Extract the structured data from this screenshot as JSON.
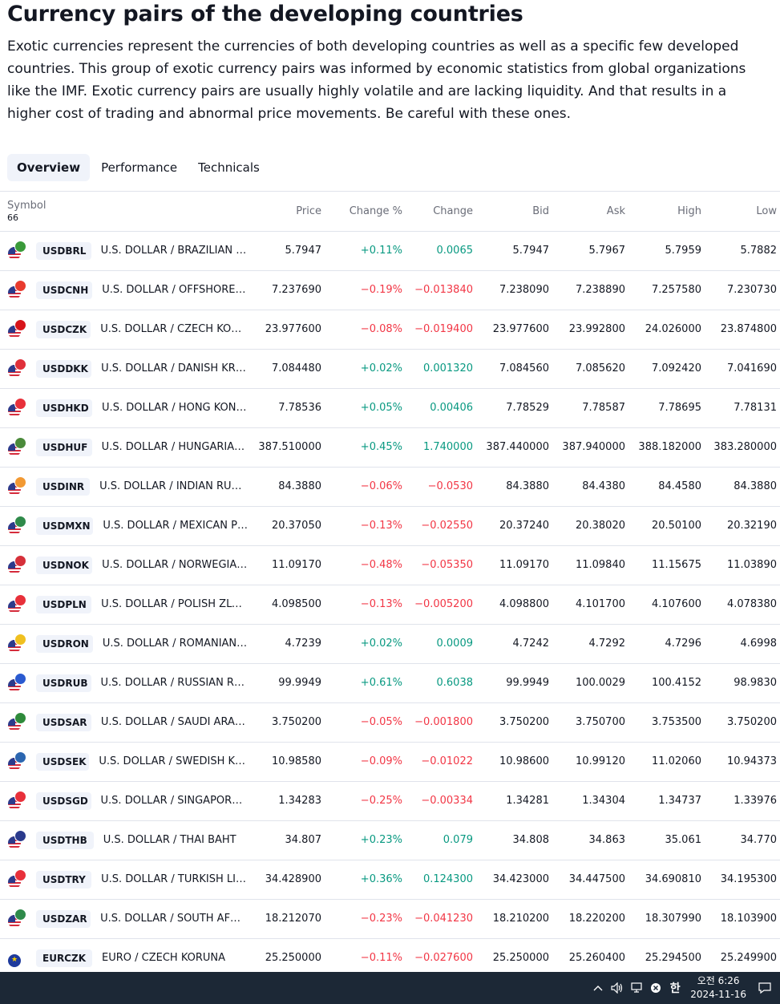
{
  "page": {
    "title": "Currency pairs of the developing countries",
    "description": "Exotic currencies represent the currencies of both developing countries as well as a specific few developed countries. This group of exotic currency pairs was informed by economic statistics from global organizations like the IMF. Exotic currency pairs are usually highly volatile and are lacking liquidity. And that results in a higher cost of trading and abnormal price movements. Be careful with these ones."
  },
  "tabs": [
    "Overview",
    "Performance",
    "Technicals"
  ],
  "table": {
    "headers": {
      "symbol": "Symbol",
      "symbol_count": "66",
      "price": "Price",
      "change_pct": "Change %",
      "change": "Change",
      "bid": "Bid",
      "ask": "Ask",
      "high": "High",
      "low": "Low"
    },
    "rows": [
      {
        "ticker": "USDBRL",
        "name": "U.S. DOLLAR / BRAZILIAN R...",
        "price": "5.7947",
        "change_pct": "+0.11%",
        "change": "0.0065",
        "bid": "5.7947",
        "ask": "5.7967",
        "high": "5.7959",
        "low": "5.7882",
        "dir": "pos",
        "flag": "us",
        "flag2": "#3a9a3a"
      },
      {
        "ticker": "USDCNH",
        "name": "U.S. DOLLAR / OFFSHORE C...",
        "price": "7.237690",
        "change_pct": "−0.19%",
        "change": "−0.013840",
        "bid": "7.238090",
        "ask": "7.238890",
        "high": "7.257580",
        "low": "7.230730",
        "dir": "neg",
        "flag": "us",
        "flag2": "#e83b2e"
      },
      {
        "ticker": "USDCZK",
        "name": "U.S. DOLLAR / CZECH KORU...",
        "price": "23.977600",
        "change_pct": "−0.08%",
        "change": "−0.019400",
        "bid": "23.977600",
        "ask": "23.992800",
        "high": "24.026000",
        "low": "23.874800",
        "dir": "neg",
        "flag": "us",
        "flag2": "#d7141a"
      },
      {
        "ticker": "USDDKK",
        "name": "U.S. DOLLAR / DANISH KRONE",
        "price": "7.084480",
        "change_pct": "+0.02%",
        "change": "0.001320",
        "bid": "7.084560",
        "ask": "7.085620",
        "high": "7.092420",
        "low": "7.041690",
        "dir": "pos",
        "flag": "us",
        "flag2": "#e0303a"
      },
      {
        "ticker": "USDHKD",
        "name": "U.S. DOLLAR / HONG KONG ...",
        "price": "7.78536",
        "change_pct": "+0.05%",
        "change": "0.00406",
        "bid": "7.78529",
        "ask": "7.78587",
        "high": "7.78695",
        "low": "7.78131",
        "dir": "pos",
        "flag": "us",
        "flag2": "#e8303a"
      },
      {
        "ticker": "USDHUF",
        "name": "U.S. DOLLAR / HUNGARIAN ...",
        "price": "387.510000",
        "change_pct": "+0.45%",
        "change": "1.740000",
        "bid": "387.440000",
        "ask": "387.940000",
        "high": "388.182000",
        "low": "383.280000",
        "dir": "pos",
        "flag": "us",
        "flag2": "#4a8a3a"
      },
      {
        "ticker": "USDINR",
        "name": "U.S. DOLLAR / INDIAN RUPEE",
        "price": "84.3880",
        "change_pct": "−0.06%",
        "change": "−0.0530",
        "bid": "84.3880",
        "ask": "84.4380",
        "high": "84.4580",
        "low": "84.3880",
        "dir": "neg",
        "flag": "us",
        "flag2": "#f29933"
      },
      {
        "ticker": "USDMXN",
        "name": "U.S. DOLLAR / MEXICAN PESO",
        "price": "20.37050",
        "change_pct": "−0.13%",
        "change": "−0.02550",
        "bid": "20.37240",
        "ask": "20.38020",
        "high": "20.50100",
        "low": "20.32190",
        "dir": "neg",
        "flag": "us",
        "flag2": "#2f8a4a"
      },
      {
        "ticker": "USDNOK",
        "name": "U.S. DOLLAR / NORWEGIAN ...",
        "price": "11.09170",
        "change_pct": "−0.48%",
        "change": "−0.05350",
        "bid": "11.09170",
        "ask": "11.09840",
        "high": "11.15675",
        "low": "11.03890",
        "dir": "neg",
        "flag": "us",
        "flag2": "#d6303a"
      },
      {
        "ticker": "USDPLN",
        "name": "U.S. DOLLAR / POLISH ZLOTY",
        "price": "4.098500",
        "change_pct": "−0.13%",
        "change": "−0.005200",
        "bid": "4.098800",
        "ask": "4.101700",
        "high": "4.107600",
        "low": "4.078380",
        "dir": "neg",
        "flag": "us",
        "flag2": "#e8303a"
      },
      {
        "ticker": "USDRON",
        "name": "U.S. DOLLAR / ROMANIAN L...",
        "price": "4.7239",
        "change_pct": "+0.02%",
        "change": "0.0009",
        "bid": "4.7242",
        "ask": "4.7292",
        "high": "4.7296",
        "low": "4.6998",
        "dir": "pos",
        "flag": "us",
        "flag2": "#f0c020"
      },
      {
        "ticker": "USDRUB",
        "name": "U.S. DOLLAR / RUSSIAN RUB...",
        "price": "99.9949",
        "change_pct": "+0.61%",
        "change": "0.6038",
        "bid": "99.9949",
        "ask": "100.0029",
        "high": "100.4152",
        "low": "98.9830",
        "dir": "pos",
        "flag": "us",
        "flag2": "#2a5ad0"
      },
      {
        "ticker": "USDSAR",
        "name": "U.S. DOLLAR / SAUDI ARABI...",
        "price": "3.750200",
        "change_pct": "−0.05%",
        "change": "−0.001800",
        "bid": "3.750200",
        "ask": "3.750700",
        "high": "3.753500",
        "low": "3.750200",
        "dir": "neg",
        "flag": "us",
        "flag2": "#2e8a3a"
      },
      {
        "ticker": "USDSEK",
        "name": "U.S. DOLLAR / SWEDISH KRO...",
        "price": "10.98580",
        "change_pct": "−0.09%",
        "change": "−0.01022",
        "bid": "10.98600",
        "ask": "10.99120",
        "high": "11.02060",
        "low": "10.94373",
        "dir": "neg",
        "flag": "us",
        "flag2": "#2b66b0"
      },
      {
        "ticker": "USDSGD",
        "name": "U.S. DOLLAR / SINGAPORE D...",
        "price": "1.34283",
        "change_pct": "−0.25%",
        "change": "−0.00334",
        "bid": "1.34281",
        "ask": "1.34304",
        "high": "1.34737",
        "low": "1.33976",
        "dir": "neg",
        "flag": "us",
        "flag2": "#e8303a"
      },
      {
        "ticker": "USDTHB",
        "name": "U.S. DOLLAR / THAI BAHT",
        "price": "34.807",
        "change_pct": "+0.23%",
        "change": "0.079",
        "bid": "34.808",
        "ask": "34.863",
        "high": "35.061",
        "low": "34.770",
        "dir": "pos",
        "flag": "us",
        "flag2": "#2a3a8c"
      },
      {
        "ticker": "USDTRY",
        "name": "U.S. DOLLAR / TURKISH LIRA",
        "price": "34.428900",
        "change_pct": "+0.36%",
        "change": "0.124300",
        "bid": "34.423000",
        "ask": "34.447500",
        "high": "34.690810",
        "low": "34.195300",
        "dir": "pos",
        "flag": "us",
        "flag2": "#e8303a"
      },
      {
        "ticker": "USDZAR",
        "name": "U.S. DOLLAR / SOUTH AFRIC...",
        "price": "18.212070",
        "change_pct": "−0.23%",
        "change": "−0.041230",
        "bid": "18.210200",
        "ask": "18.220200",
        "high": "18.307990",
        "low": "18.103900",
        "dir": "neg",
        "flag": "us",
        "flag2": "#2e8a4a"
      },
      {
        "ticker": "EURCZK",
        "name": "EURO / CZECH KORUNA",
        "price": "25.250000",
        "change_pct": "−0.11%",
        "change": "−0.027600",
        "bid": "25.250000",
        "ask": "25.260400",
        "high": "25.294500",
        "low": "25.249900",
        "dir": "neg",
        "flag": "eu",
        "flag2": ""
      }
    ]
  },
  "taskbar": {
    "time": "오전 6:26",
    "date": "2024-11-16",
    "ime": "한",
    "icons": [
      "chevron-up-icon",
      "speaker-icon",
      "network-icon",
      "close-circle-icon",
      "ime-icon",
      "notification-icon"
    ]
  }
}
